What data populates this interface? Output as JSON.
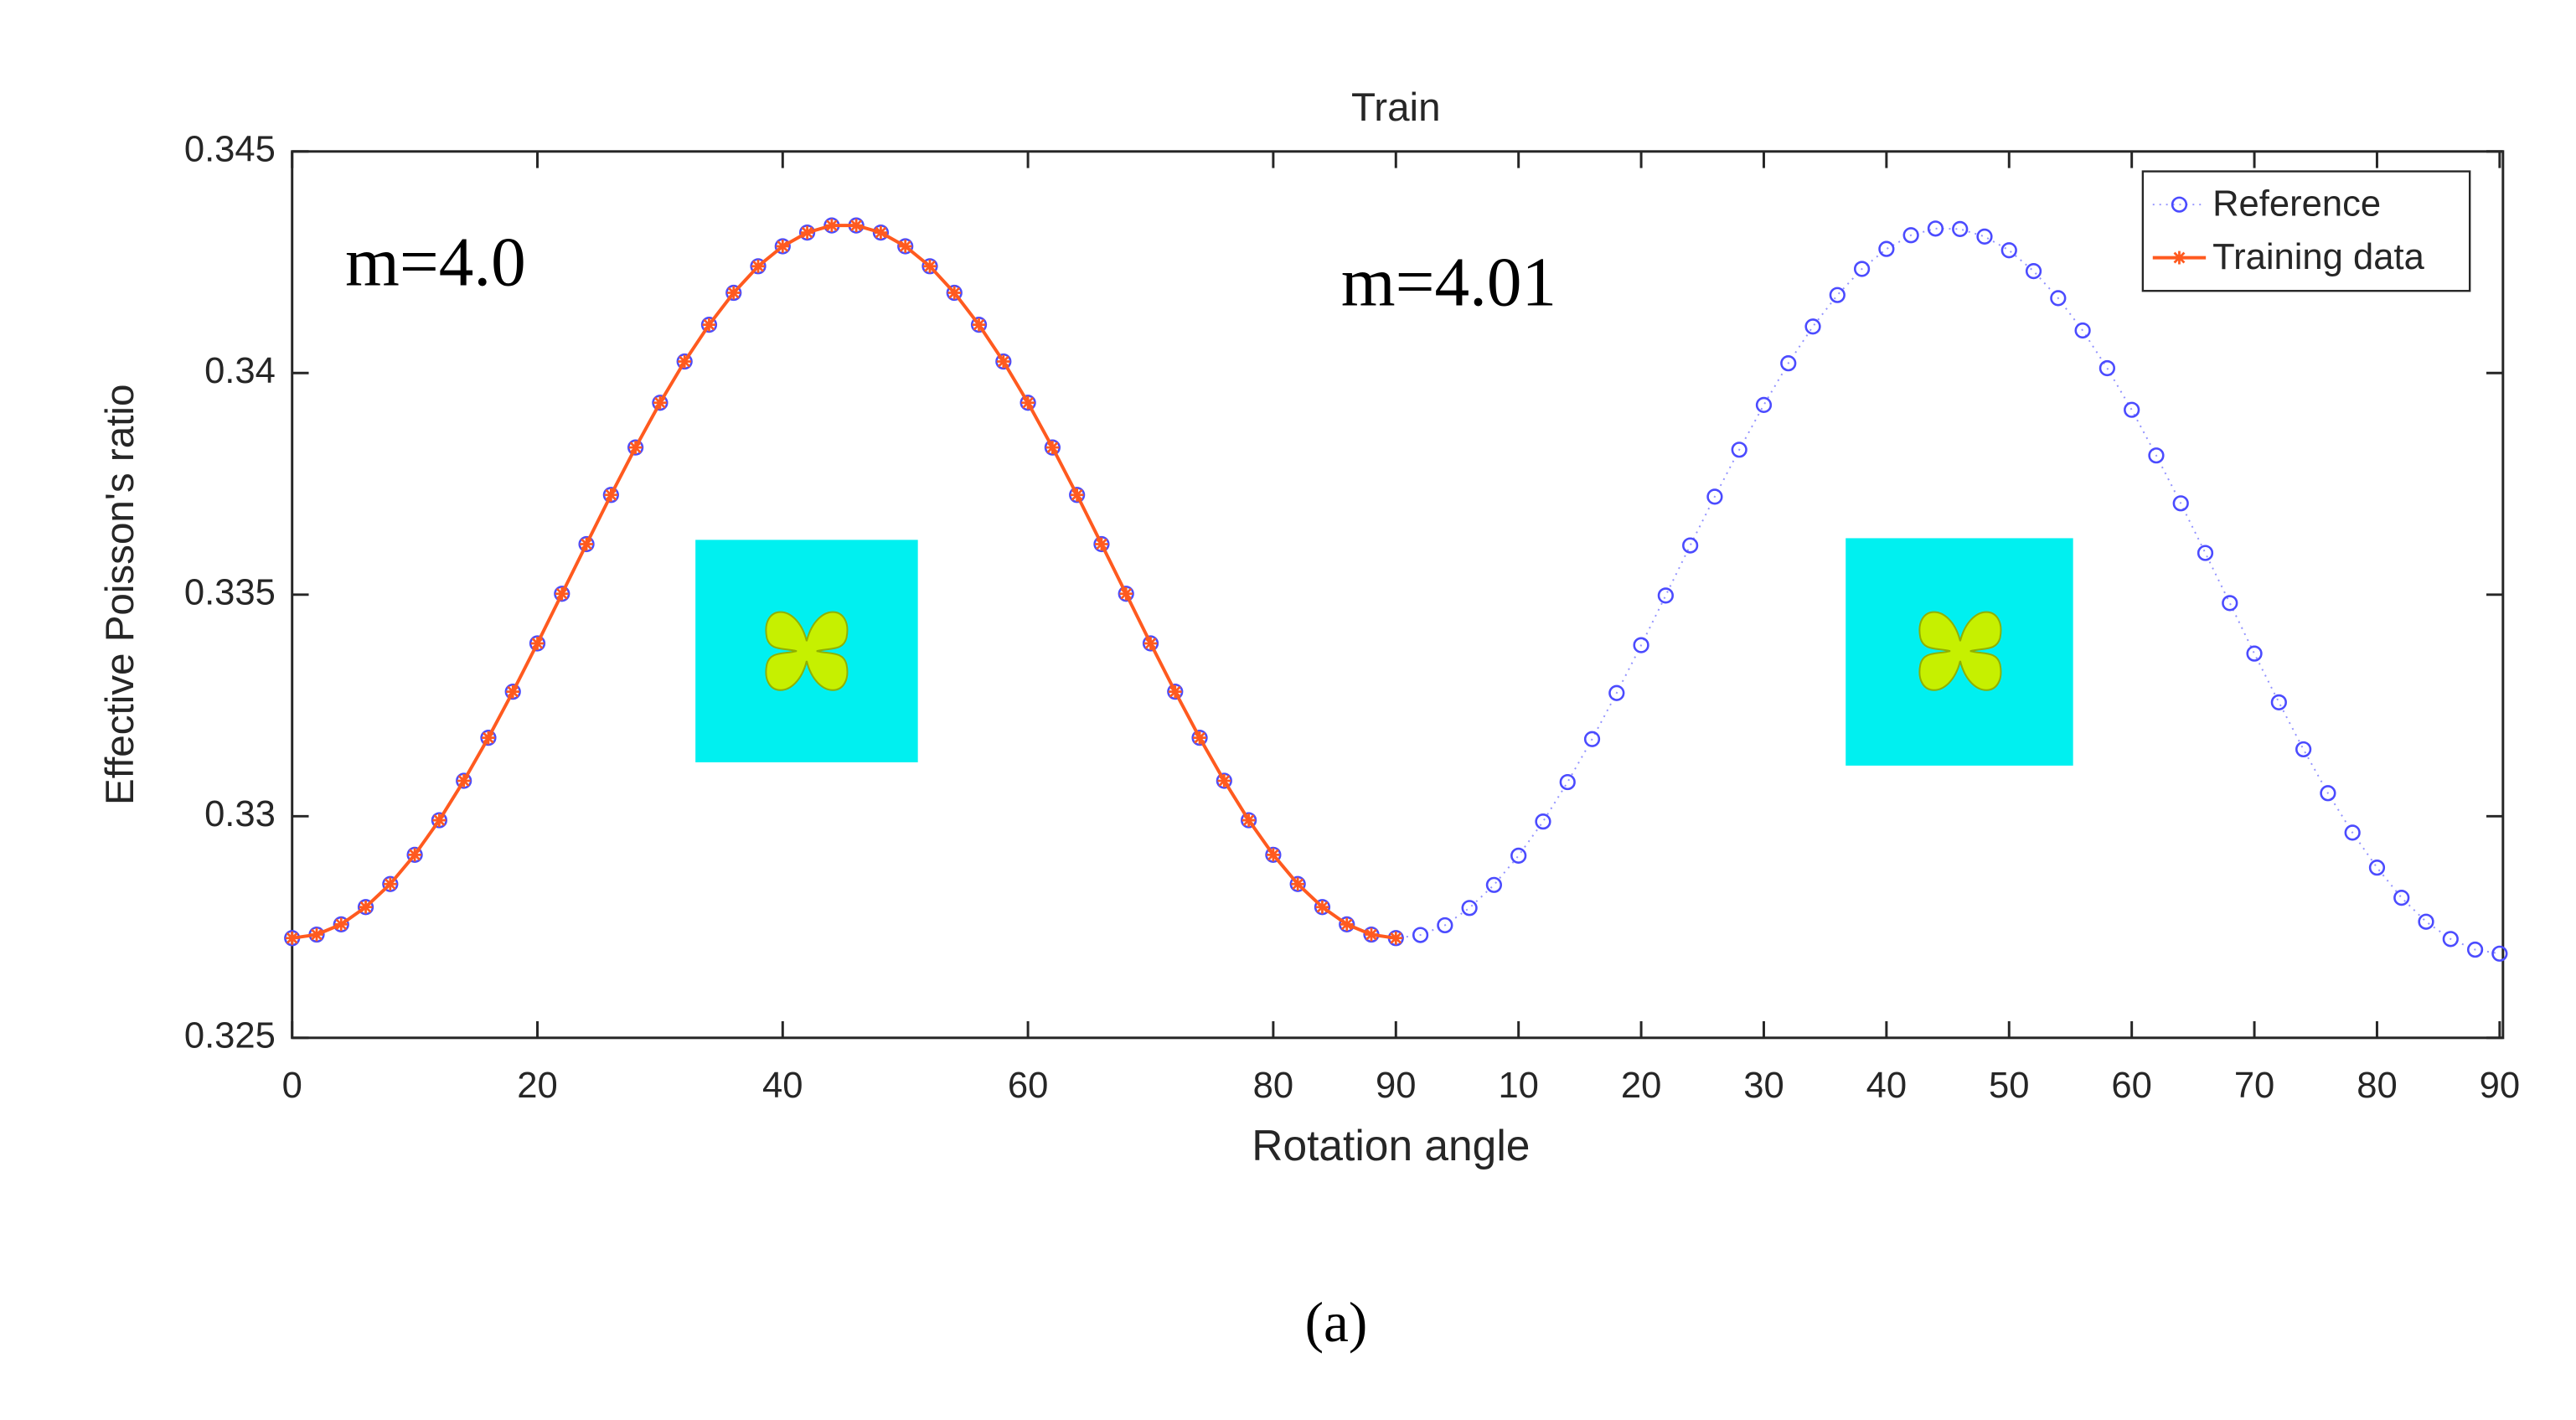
{
  "chart_data": {
    "type": "line",
    "title": "Train",
    "x_label": "Rotation angle",
    "y_label": "Effective Poisson's ratio",
    "annotations": [
      "m=4.0",
      "m=4.01"
    ],
    "caption": "(a)",
    "x": [
      0,
      2,
      4,
      6,
      8,
      10,
      12,
      14,
      16,
      18,
      20,
      22,
      24,
      26,
      28,
      30,
      32,
      34,
      36,
      38,
      40,
      42,
      44,
      46,
      48,
      50,
      52,
      54,
      56,
      58,
      60,
      62,
      64,
      66,
      68,
      70,
      72,
      74,
      76,
      78,
      80,
      82,
      84,
      86,
      88,
      90,
      92,
      94,
      96,
      98,
      100,
      102,
      104,
      106,
      108,
      110,
      112,
      114,
      116,
      118,
      120,
      122,
      124,
      126,
      128,
      130,
      132,
      134,
      136,
      138,
      140,
      142,
      144,
      146,
      148,
      150,
      152,
      154,
      156,
      158,
      160,
      162,
      164,
      166,
      168,
      170,
      172,
      174,
      176,
      178,
      180
    ],
    "series": [
      {
        "name": "Reference",
        "color": "#4b4bff",
        "marker": "circle",
        "values": [
          0.32725,
          0.32733,
          0.32756,
          0.32795,
          0.32847,
          0.32913,
          0.32991,
          0.3308,
          0.33177,
          0.33281,
          0.3339,
          0.33502,
          0.33614,
          0.33725,
          0.33832,
          0.33933,
          0.34026,
          0.34109,
          0.34181,
          0.34241,
          0.34286,
          0.34317,
          0.34333,
          0.34333,
          0.34317,
          0.34286,
          0.34241,
          0.34181,
          0.34109,
          0.34026,
          0.33933,
          0.33832,
          0.33725,
          0.33614,
          0.33502,
          0.3339,
          0.33281,
          0.33177,
          0.3308,
          0.32991,
          0.32913,
          0.32847,
          0.32795,
          0.32756,
          0.32733,
          0.32725,
          0.32732,
          0.32754,
          0.32793,
          0.32845,
          0.32911,
          0.32988,
          0.33077,
          0.33174,
          0.33278,
          0.33386,
          0.33498,
          0.33611,
          0.33721,
          0.33827,
          0.33928,
          0.34022,
          0.34105,
          0.34176,
          0.34235,
          0.3428,
          0.34311,
          0.34326,
          0.34325,
          0.34308,
          0.34277,
          0.3423,
          0.34169,
          0.34096,
          0.34011,
          0.33917,
          0.33814,
          0.33706,
          0.33594,
          0.33481,
          0.33367,
          0.33257,
          0.33151,
          0.33052,
          0.32963,
          0.32884,
          0.32816,
          0.32762,
          0.32723,
          0.32699,
          0.3269
        ]
      },
      {
        "name": "Training data",
        "color": "#ff5a1f",
        "marker": "star",
        "values": [
          0.32725,
          0.32733,
          0.32756,
          0.32795,
          0.32847,
          0.32913,
          0.32991,
          0.3308,
          0.33177,
          0.33281,
          0.3339,
          0.33502,
          0.33614,
          0.33725,
          0.33832,
          0.33933,
          0.34026,
          0.34109,
          0.34181,
          0.34241,
          0.34286,
          0.34317,
          0.34333,
          0.34333,
          0.34317,
          0.34286,
          0.34241,
          0.34181,
          0.34109,
          0.34026,
          0.33933,
          0.33832,
          0.33725,
          0.33614,
          0.33502,
          0.3339,
          0.33281,
          0.33177,
          0.3308,
          0.32991,
          0.32913,
          0.32847,
          0.32795,
          0.32756,
          0.32733,
          0.32725,
          null,
          null,
          null,
          null,
          null,
          null,
          null,
          null,
          null,
          null,
          null,
          null,
          null,
          null,
          null,
          null,
          null,
          null,
          null,
          null,
          null,
          null,
          null,
          null,
          null,
          null,
          null,
          null,
          null,
          null,
          null,
          null,
          null,
          null,
          null,
          null,
          null,
          null,
          null,
          null,
          null,
          null,
          null,
          null,
          null
        ]
      }
    ],
    "xlim": [
      0,
      180
    ],
    "xticks": [
      0,
      20,
      40,
      60,
      80,
      90,
      {
        "value": 100,
        "label": "10"
      },
      {
        "value": 110,
        "label": "20"
      },
      {
        "value": 120,
        "label": "30"
      },
      {
        "value": 130,
        "label": "40"
      },
      {
        "value": 140,
        "label": "50"
      },
      {
        "value": 150,
        "label": "60"
      },
      {
        "value": 160,
        "label": "70"
      },
      {
        "value": 170,
        "label": "80"
      },
      {
        "value": 180,
        "label": "90"
      }
    ],
    "ylim": [
      0.325,
      0.345
    ],
    "yticks": [
      0.325,
      0.33,
      0.335,
      0.34,
      0.345
    ],
    "legend": "upper right",
    "grid": false
  }
}
